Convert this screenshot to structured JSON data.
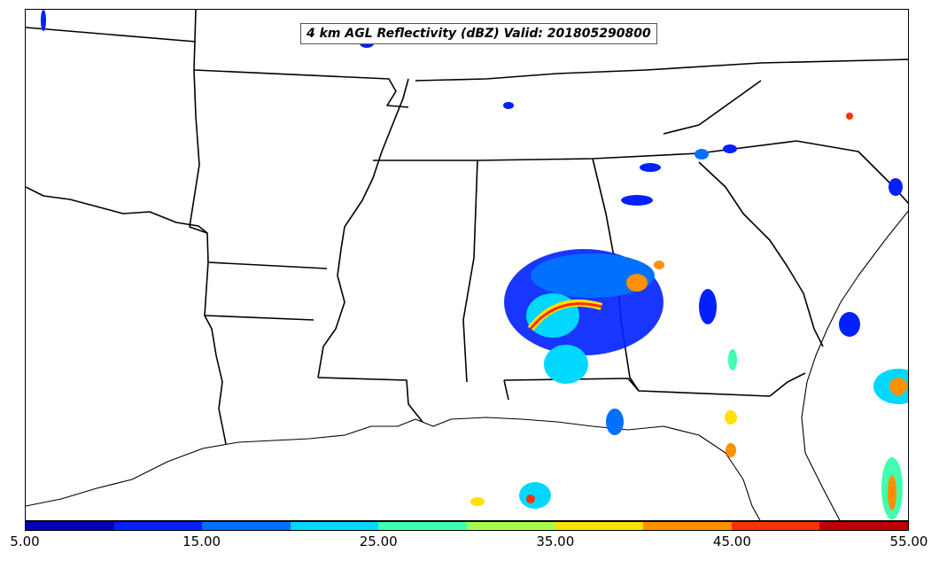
{
  "title": "4 km AGL Reflectivity (dBZ) Valid: 201805290800",
  "colorbar": {
    "min": 5.0,
    "max": 55.0,
    "tick_labels": [
      "5.00",
      "15.00",
      "25.00",
      "35.00",
      "45.00",
      "55.00"
    ],
    "colors": [
      "#0000b8",
      "#0020ff",
      "#0070ff",
      "#00d8ff",
      "#40ffb0",
      "#a0ff50",
      "#ffe000",
      "#ff9000",
      "#ff3000",
      "#c00000"
    ]
  }
}
